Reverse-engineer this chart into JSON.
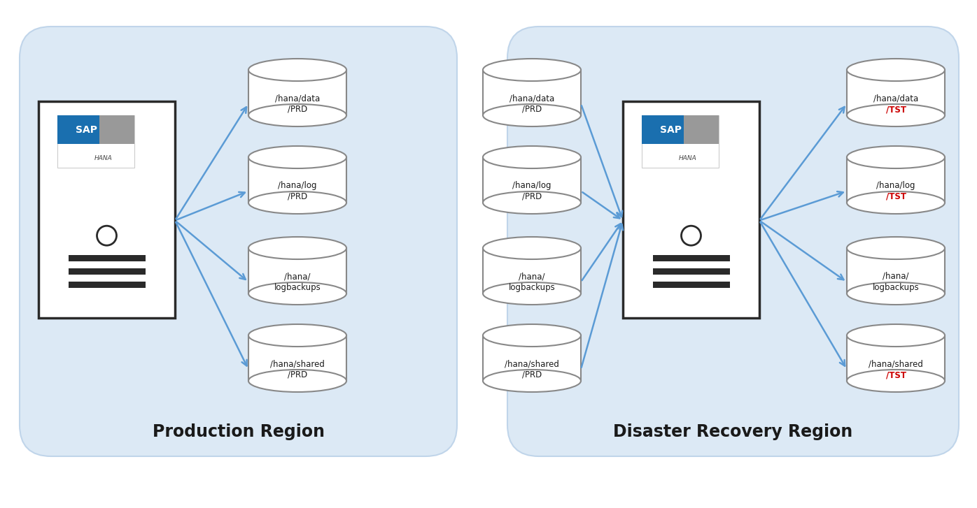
{
  "bg_color": "#dce9f5",
  "box_edge_color": "#c0d5ea",
  "server_face_color": "white",
  "server_edge_color": "#2a2a2a",
  "cylinder_face_color": "white",
  "cylinder_edge_color": "#888888",
  "arrow_color": "#5b9bd5",
  "red_text_color": "#cc0000",
  "dark_text_color": "#1a1a1a",
  "panel1_label": "Production Region",
  "panel2_label": "Disaster Recovery Region",
  "prod_disks": [
    "/hana/data\n/PRD",
    "/hana/log\n/PRD",
    "/hana/\nlogbackups",
    "/hana/shared\n/PRD"
  ],
  "dr_left_disks": [
    "/hana/data\n/PRD",
    "/hana/log\n/PRD",
    "/hana/\nlogbackups",
    "/hana/shared\n/PRD"
  ],
  "dr_right_line1": [
    "/hana/data",
    "/hana/log",
    "/hana/",
    "/hana/shared"
  ],
  "dr_right_line2": [
    "/TST",
    "/TST",
    "logbackups",
    "/TST"
  ],
  "dr_right_red": [
    true,
    true,
    false,
    true
  ],
  "sap_blue": "#1a6faf",
  "sap_gray": "#999999"
}
